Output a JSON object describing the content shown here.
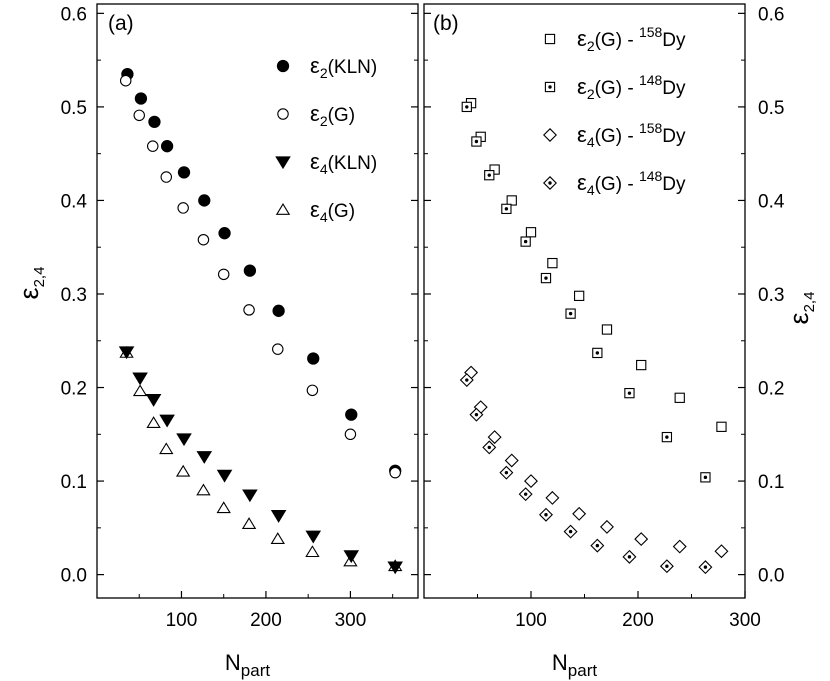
{
  "chart_data": [
    {
      "type": "scatter",
      "panel_label": "(a)",
      "xlabel": {
        "main": "N",
        "sub": "part"
      },
      "ylabel": {
        "main": "ε",
        "sub": "2,4"
      },
      "xlim": [
        0,
        380
      ],
      "ylim": [
        -0.025,
        0.61
      ],
      "xticks": [
        100,
        200,
        300
      ],
      "yticks": [
        0.0,
        0.1,
        0.2,
        0.3,
        0.4,
        0.5,
        0.6
      ],
      "ytick_labels": [
        "0.0",
        "0.1",
        "0.2",
        "0.3",
        "0.4",
        "0.5",
        "0.6"
      ],
      "legend_position": "top-right",
      "series": [
        {
          "name": "ε2(KLN)",
          "legend": {
            "eps": "ε",
            "sub": "2",
            "rest": "(KLN)",
            "sup": "",
            "tail": ""
          },
          "marker": "filled-circle",
          "x": [
            36,
            52,
            68,
            83,
            103,
            127,
            151,
            181,
            215,
            256,
            301,
            353
          ],
          "y": [
            0.535,
            0.509,
            0.484,
            0.458,
            0.43,
            0.4,
            0.365,
            0.325,
            0.282,
            0.231,
            0.171,
            0.111
          ]
        },
        {
          "name": "ε2(G)",
          "legend": {
            "eps": "ε",
            "sub": "2",
            "rest": "(G)",
            "sup": "",
            "tail": ""
          },
          "marker": "open-circle",
          "x": [
            34,
            50,
            66,
            82,
            102,
            126,
            150,
            180,
            214,
            255,
            300,
            353
          ],
          "y": [
            0.528,
            0.491,
            0.458,
            0.425,
            0.392,
            0.358,
            0.321,
            0.283,
            0.241,
            0.197,
            0.15,
            0.109
          ]
        },
        {
          "name": "ε4(KLN)",
          "legend": {
            "eps": "ε",
            "sub": "4",
            "rest": "(KLN)",
            "sup": "",
            "tail": ""
          },
          "marker": "filled-triangle-down",
          "x": [
            35,
            51,
            67,
            83,
            103,
            127,
            151,
            181,
            215,
            256,
            301,
            353
          ],
          "y": [
            0.238,
            0.21,
            0.187,
            0.165,
            0.145,
            0.126,
            0.106,
            0.085,
            0.063,
            0.041,
            0.02,
            0.008
          ]
        },
        {
          "name": "ε4(G)",
          "legend": {
            "eps": "ε",
            "sub": "4",
            "rest": "(G)",
            "sup": "",
            "tail": ""
          },
          "marker": "open-triangle-up",
          "x": [
            35,
            51,
            67,
            82,
            102,
            126,
            150,
            180,
            214,
            255,
            300,
            353
          ],
          "y": [
            0.237,
            0.196,
            0.162,
            0.134,
            0.11,
            0.09,
            0.071,
            0.054,
            0.038,
            0.024,
            0.014,
            0.009
          ]
        }
      ]
    },
    {
      "type": "scatter",
      "panel_label": "(b)",
      "xlabel": {
        "main": "N",
        "sub": "part"
      },
      "ylabel": {
        "main": "ε",
        "sub": "2,4"
      },
      "xlim": [
        0,
        300
      ],
      "ylim": [
        -0.025,
        0.61
      ],
      "xticks": [
        100,
        200,
        300
      ],
      "yticks": [
        0.0,
        0.1,
        0.2,
        0.3,
        0.4,
        0.5,
        0.6
      ],
      "ytick_labels": [
        "0.0",
        "0.1",
        "0.2",
        "0.3",
        "0.4",
        "0.5",
        "0.6"
      ],
      "legend_position": "top-right",
      "series": [
        {
          "name": "ε2(G) - 158Dy",
          "legend": {
            "eps": "ε",
            "sub": "2",
            "rest": "(G) - ",
            "sup": "158",
            "tail": "Dy"
          },
          "marker": "open-square",
          "x": [
            44,
            53,
            66,
            82,
            100,
            120,
            145,
            171,
            203,
            239,
            278
          ],
          "y": [
            0.504,
            0.468,
            0.433,
            0.4,
            0.366,
            0.333,
            0.298,
            0.262,
            0.224,
            0.189,
            0.158
          ]
        },
        {
          "name": "ε2(G) - 148Dy",
          "legend": {
            "eps": "ε",
            "sub": "2",
            "rest": "(G) - ",
            "sup": "148",
            "tail": "Dy"
          },
          "marker": "dotted-square",
          "x": [
            40,
            49,
            61,
            77,
            95,
            114,
            137,
            162,
            192,
            227,
            263
          ],
          "y": [
            0.5,
            0.463,
            0.427,
            0.391,
            0.356,
            0.317,
            0.279,
            0.237,
            0.194,
            0.147,
            0.104
          ]
        },
        {
          "name": "ε4(G) - 158Dy",
          "legend": {
            "eps": "ε",
            "sub": "4",
            "rest": "(G) - ",
            "sup": "158",
            "tail": "Dy"
          },
          "marker": "open-diamond",
          "x": [
            44,
            53,
            66,
            82,
            100,
            120,
            145,
            171,
            203,
            239,
            278
          ],
          "y": [
            0.216,
            0.179,
            0.147,
            0.122,
            0.1,
            0.082,
            0.065,
            0.051,
            0.038,
            0.03,
            0.025
          ]
        },
        {
          "name": "ε4(G) - 148Dy",
          "legend": {
            "eps": "ε",
            "sub": "4",
            "rest": "(G) - ",
            "sup": "148",
            "tail": "Dy"
          },
          "marker": "dotted-diamond",
          "x": [
            40,
            49,
            61,
            77,
            95,
            114,
            137,
            162,
            192,
            227,
            263
          ],
          "y": [
            0.208,
            0.171,
            0.136,
            0.109,
            0.086,
            0.064,
            0.046,
            0.031,
            0.019,
            0.009,
            0.008
          ]
        }
      ]
    }
  ]
}
